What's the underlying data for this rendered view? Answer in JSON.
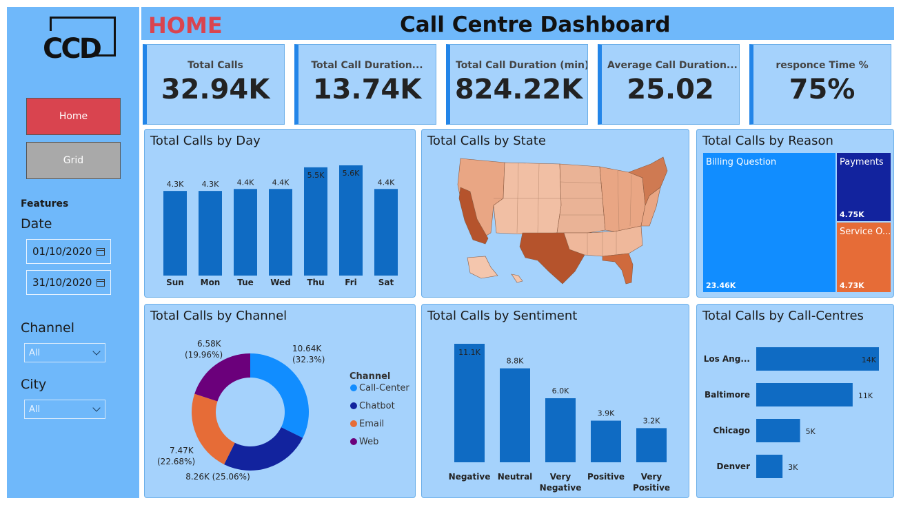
{
  "logo": {
    "text": "CCD"
  },
  "nav": {
    "home": "Home",
    "grid": "Grid"
  },
  "filters": {
    "features": "Features",
    "date_label": "Date",
    "date_start": "01/10/2020",
    "date_end": "31/10/2020",
    "channel_label": "Channel",
    "channel_value": "All",
    "city_label": "City",
    "city_value": "All"
  },
  "header": {
    "page": "HOME",
    "title": "Call Centre Dashboard"
  },
  "kpis": [
    {
      "label": "Total Calls",
      "value": "32.94K"
    },
    {
      "label": "Total Call Duration...",
      "value": "13.74K"
    },
    {
      "label": "Total Call Duration (min)",
      "value": "824.22K"
    },
    {
      "label": "Average Call Duration...",
      "value": "25.02"
    },
    {
      "label": "responce Time %",
      "value": "75%"
    }
  ],
  "panels": {
    "day": "Total Calls by Day",
    "state": "Total Calls by State",
    "reason": "Total Calls by Reason",
    "channel": "Total Calls by Channel",
    "sentiment": "Total Calls by Sentiment",
    "centres": "Total Calls by Call-Centres"
  },
  "colors": {
    "bar": "#0f6bc3",
    "accent": "#2385e8",
    "red": "#d9444f",
    "callcenter": "#118dff",
    "chatbot": "#12239e",
    "email": "#e66c37",
    "web": "#6b007b"
  },
  "chart_data": [
    {
      "id": "day",
      "type": "bar",
      "categories": [
        "Sun",
        "Mon",
        "Tue",
        "Wed",
        "Thu",
        "Fri",
        "Sat"
      ],
      "values": [
        4.3,
        4.3,
        4.4,
        4.4,
        5.5,
        5.6,
        4.4
      ],
      "labels": [
        "4.3K",
        "4.3K",
        "4.4K",
        "4.4K",
        "5.5K",
        "5.6K",
        "4.4K"
      ]
    },
    {
      "id": "reason",
      "type": "treemap",
      "items": [
        {
          "name": "Billing Question",
          "value": 23.46,
          "label": "23.46K"
        },
        {
          "name": "Payments",
          "value": 4.75,
          "label": "4.75K"
        },
        {
          "name": "Service O...",
          "value": 4.73,
          "label": "4.73K"
        }
      ]
    },
    {
      "id": "channel",
      "type": "pie",
      "legend_title": "Channel",
      "slices": [
        {
          "name": "Call-Center",
          "value": 10.64,
          "label": "10.64K",
          "pct": "(32.3%)"
        },
        {
          "name": "Chatbot",
          "value": 8.26,
          "label": "8.26K (25.06%)"
        },
        {
          "name": "Email",
          "value": 7.47,
          "label": "7.47K",
          "pct": "(22.68%)"
        },
        {
          "name": "Web",
          "value": 6.58,
          "label": "6.58K",
          "pct": "(19.96%)"
        }
      ]
    },
    {
      "id": "sentiment",
      "type": "bar",
      "categories": [
        "Negative",
        "Neutral",
        "Very Negative",
        "Positive",
        "Very Positive"
      ],
      "values": [
        11.1,
        8.8,
        6.0,
        3.9,
        3.2
      ],
      "labels": [
        "11.1K",
        "8.8K",
        "6.0K",
        "3.9K",
        "3.2K"
      ]
    },
    {
      "id": "centres",
      "type": "bar",
      "orientation": "horizontal",
      "categories": [
        "Los Ang...",
        "Baltimore",
        "Chicago",
        "Denver"
      ],
      "values": [
        14,
        11,
        5,
        3
      ],
      "labels": [
        "14K",
        "11K",
        "5K",
        "3K"
      ]
    }
  ]
}
